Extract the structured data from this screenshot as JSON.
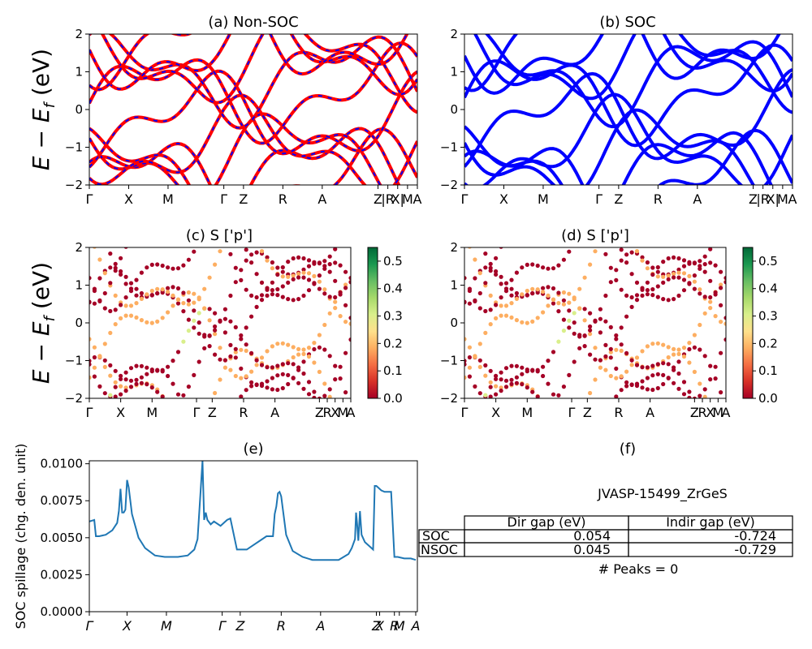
{
  "colors": {
    "nonsoc_line": "#ff0000",
    "soc_line": "#0000ff",
    "spillage_line": "#1f77b4",
    "colormap": "RdYlGn",
    "colormap_stops": [
      "#a50026",
      "#d73027",
      "#f46d43",
      "#fdae61",
      "#fee08b",
      "#d9ef8b",
      "#a6d96a",
      "#66bd63",
      "#1a9850",
      "#006837"
    ]
  },
  "chart_data": [
    {
      "id": "a",
      "type": "line",
      "title": "(a) Non-SOC",
      "ylabel_parts": [
        "E",
        " − ",
        "E",
        "f",
        " (eV)"
      ],
      "ylim": [
        -2,
        2
      ],
      "yticks": [
        "2",
        "1",
        "0",
        "−1",
        "−2"
      ],
      "yticks_values": [
        2,
        1,
        0,
        -1,
        -2
      ],
      "xlim": [
        0,
        100
      ],
      "xticks": [
        {
          "x": 0,
          "label": "Γ"
        },
        {
          "x": 12,
          "label": "X"
        },
        {
          "x": 24,
          "label": "M"
        },
        {
          "x": 41,
          "label": "Γ"
        },
        {
          "x": 47,
          "label": "Z"
        },
        {
          "x": 59,
          "label": "R"
        },
        {
          "x": 71,
          "label": "A"
        },
        {
          "x": 88,
          "label": "Z"
        },
        {
          "x": 91,
          "label": "|R"
        },
        {
          "x": 94,
          "label": "X|"
        },
        {
          "x": 97,
          "label": "M"
        },
        {
          "x": 100,
          "label": "A"
        }
      ],
      "style": "red-dashed-blue",
      "series": []
    },
    {
      "id": "b",
      "type": "line",
      "title": "(b) SOC",
      "ylim": [
        -2,
        2
      ],
      "yticks": [
        "2",
        "1",
        "0",
        "−1",
        "−2"
      ],
      "yticks_values": [
        2,
        1,
        0,
        -1,
        -2
      ],
      "xlim": [
        0,
        100
      ],
      "xticks": [
        {
          "x": 0,
          "label": "Γ"
        },
        {
          "x": 12,
          "label": "X"
        },
        {
          "x": 24,
          "label": "M"
        },
        {
          "x": 41,
          "label": "Γ"
        },
        {
          "x": 47,
          "label": "Z"
        },
        {
          "x": 59,
          "label": "R"
        },
        {
          "x": 71,
          "label": "A"
        },
        {
          "x": 88,
          "label": "Z"
        },
        {
          "x": 91,
          "label": "|R"
        },
        {
          "x": 94,
          "label": "X|"
        },
        {
          "x": 97,
          "label": "M"
        },
        {
          "x": 100,
          "label": "A"
        }
      ],
      "style": "blue",
      "series": []
    },
    {
      "id": "c",
      "type": "scatter",
      "title": "(c)  S ['p']",
      "ylabel_parts": [
        "E",
        " − ",
        "E",
        "f",
        " (eV)"
      ],
      "ylim": [
        -2,
        2
      ],
      "yticks": [
        "2",
        "1",
        "0",
        "−1",
        "−2"
      ],
      "yticks_values": [
        2,
        1,
        0,
        -1,
        -2
      ],
      "xlim": [
        0,
        100
      ],
      "xticks": [
        {
          "x": 0,
          "label": "Γ"
        },
        {
          "x": 12,
          "label": "X"
        },
        {
          "x": 24,
          "label": "M"
        },
        {
          "x": 41,
          "label": "Γ"
        },
        {
          "x": 47,
          "label": "Z"
        },
        {
          "x": 59,
          "label": "R"
        },
        {
          "x": 71,
          "label": "A"
        },
        {
          "x": 88,
          "label": "Z"
        },
        {
          "x": 91,
          "label": "R"
        },
        {
          "x": 94,
          "label": "X"
        },
        {
          "x": 97,
          "label": "M"
        },
        {
          "x": 100,
          "label": "A"
        }
      ],
      "colorbar": {
        "ticks": [
          "0.5",
          "0.4",
          "0.3",
          "0.2",
          "0.1",
          "0.0"
        ],
        "tick_values": [
          0.5,
          0.4,
          0.3,
          0.2,
          0.1,
          0.0
        ],
        "range": [
          0,
          0.55
        ]
      },
      "series": []
    },
    {
      "id": "d",
      "type": "scatter",
      "title": "(d) S ['p']",
      "ylim": [
        -2,
        2
      ],
      "yticks": [
        "2",
        "1",
        "0",
        "−1",
        "−2"
      ],
      "yticks_values": [
        2,
        1,
        0,
        -1,
        -2
      ],
      "xlim": [
        0,
        100
      ],
      "xticks": [
        {
          "x": 0,
          "label": "Γ"
        },
        {
          "x": 12,
          "label": "X"
        },
        {
          "x": 24,
          "label": "M"
        },
        {
          "x": 41,
          "label": "Γ"
        },
        {
          "x": 47,
          "label": "Z"
        },
        {
          "x": 59,
          "label": "R"
        },
        {
          "x": 71,
          "label": "A"
        },
        {
          "x": 88,
          "label": "Z"
        },
        {
          "x": 91,
          "label": "R"
        },
        {
          "x": 94,
          "label": "X"
        },
        {
          "x": 97,
          "label": "M"
        },
        {
          "x": 100,
          "label": "A"
        }
      ],
      "colorbar": {
        "ticks": [
          "0.5",
          "0.4",
          "0.3",
          "0.2",
          "0.1",
          "0.0"
        ],
        "tick_values": [
          0.5,
          0.4,
          0.3,
          0.2,
          0.1,
          0.0
        ],
        "range": [
          0,
          0.55
        ]
      },
      "series": []
    },
    {
      "id": "e",
      "type": "line",
      "title": "(e)",
      "ylabel": "SOC spillage (chg. den. unit)",
      "ylim": [
        0,
        0.0102
      ],
      "yticks": [
        "0.0000",
        "0.0025",
        "0.0050",
        "0.0075",
        "0.0100"
      ],
      "yticks_values": [
        0,
        0.0025,
        0.005,
        0.0075,
        0.01
      ],
      "xlim": [
        0,
        100
      ],
      "xticks": [
        {
          "x": 0,
          "label": "Γ"
        },
        {
          "x": 11.5,
          "label": "X"
        },
        {
          "x": 23.5,
          "label": "M"
        },
        {
          "x": 40.5,
          "label": "Γ"
        },
        {
          "x": 46,
          "label": "Z"
        },
        {
          "x": 58.5,
          "label": "R"
        },
        {
          "x": 70.5,
          "label": "A"
        },
        {
          "x": 87.5,
          "label": "Z"
        },
        {
          "x": 88.5,
          "label": "X"
        },
        {
          "x": 93,
          "label": "R"
        },
        {
          "x": 94.5,
          "label": "M"
        },
        {
          "x": 99.5,
          "label": "A"
        }
      ],
      "series": [
        {
          "x": [
            0,
            1.5,
            2,
            3,
            5,
            7,
            8.5,
            9,
            9.5,
            10,
            10.5,
            11,
            11.5,
            12,
            13,
            15,
            17,
            20,
            23,
            27,
            30,
            32,
            33,
            34.5,
            35,
            35.5,
            36,
            37,
            38,
            40,
            42,
            43,
            45,
            48,
            50,
            52,
            54,
            56,
            56.5,
            57,
            57.5,
            58,
            58.5,
            59,
            60,
            62,
            65,
            68,
            72,
            76,
            79,
            80,
            81,
            81.3,
            81.6,
            82,
            82.5,
            83,
            84,
            86.5,
            87,
            87.5,
            88,
            88.5,
            89,
            90,
            92,
            93,
            94,
            96,
            98,
            99.5
          ],
          "y": [
            0.0061,
            0.0062,
            0.0051,
            0.0051,
            0.0052,
            0.0055,
            0.006,
            0.0068,
            0.0083,
            0.0067,
            0.0067,
            0.0069,
            0.0089,
            0.0084,
            0.0066,
            0.005,
            0.0043,
            0.0038,
            0.0037,
            0.0037,
            0.0038,
            0.0042,
            0.0049,
            0.0102,
            0.0062,
            0.0067,
            0.0062,
            0.0059,
            0.0061,
            0.0058,
            0.0062,
            0.0063,
            0.0042,
            0.0042,
            0.0045,
            0.0048,
            0.0051,
            0.0051,
            0.0066,
            0.0071,
            0.008,
            0.0081,
            0.0078,
            0.0069,
            0.0052,
            0.0041,
            0.0037,
            0.0035,
            0.0035,
            0.0035,
            0.0039,
            0.0043,
            0.0049,
            0.0067,
            0.006,
            0.0048,
            0.0068,
            0.0052,
            0.0047,
            0.0042,
            0.0085,
            0.0085,
            0.0084,
            0.0083,
            0.0082,
            0.0081,
            0.0081,
            0.0037,
            0.0037,
            0.0036,
            0.0036,
            0.0035
          ]
        }
      ]
    }
  ],
  "panel_f": {
    "title": "(f)",
    "material": "JVASP-15499_ZrGeS",
    "table": {
      "headers": [
        "",
        "Dir gap (eV)",
        "Indir gap (eV)"
      ],
      "rows": [
        {
          "label": "SOC",
          "dir": "0.054",
          "indir": "-0.724"
        },
        {
          "label": "NSOC",
          "dir": "0.045",
          "indir": "-0.729"
        }
      ]
    },
    "peaks": "# Peaks = 0"
  }
}
